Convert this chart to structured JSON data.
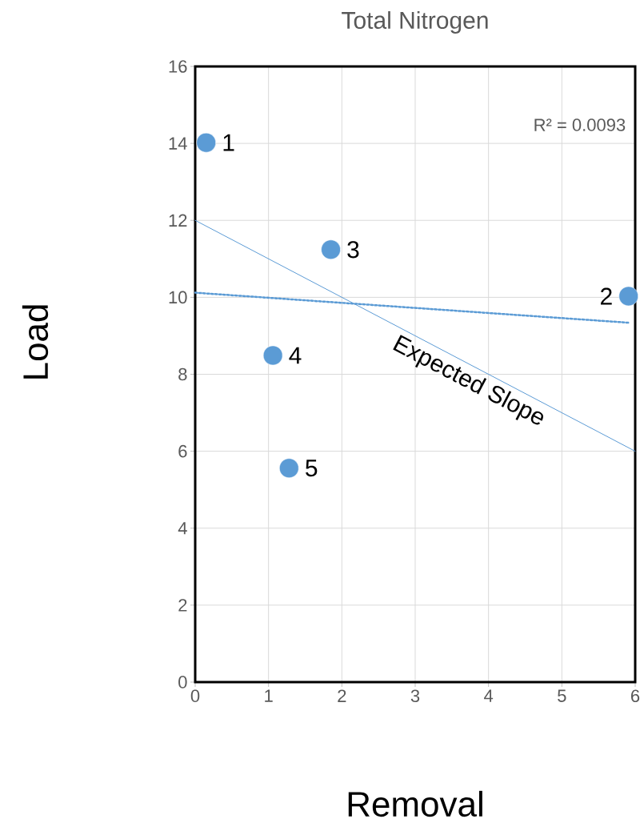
{
  "chart_data": {
    "type": "scatter",
    "title": "Total Nitrogen",
    "xlabel": "Removal",
    "ylabel": "Load",
    "series": [
      {
        "color": "#5b9bd5",
        "x": [
          0.15,
          5.91,
          1.85,
          1.06,
          1.28
        ],
        "values": [
          14.02,
          10.03,
          11.24,
          8.49,
          5.56
        ],
        "marker": "circle"
      },
      {
        "type": "line",
        "color": "#5b9bd5",
        "x": [
          0,
          5.91
        ],
        "values": [
          10.12,
          9.34
        ],
        "marker": "none",
        "line_style": "dotted"
      },
      {
        "type": "line",
        "color": "#5b9bd5",
        "x": [
          0,
          6
        ],
        "values": [
          12,
          6
        ],
        "marker": "none",
        "line_style": "solid"
      }
    ],
    "xlim": [
      0,
      6
    ],
    "ylim": [
      0,
      16
    ],
    "xticks": [
      0,
      1,
      2,
      3,
      4,
      5,
      6
    ],
    "yticks": [
      0,
      2,
      4,
      6,
      8,
      10,
      12,
      14,
      16
    ],
    "grid": true,
    "annotations": [
      {
        "text": "1",
        "x": 0.15,
        "y": 14.02
      },
      {
        "text": "2",
        "x": 5.91,
        "y": 10.03
      },
      {
        "text": "3",
        "x": 1.85,
        "y": 11.24
      },
      {
        "text": "4",
        "x": 1.06,
        "y": 8.49
      },
      {
        "text": "5",
        "x": 1.28,
        "y": 5.56
      },
      {
        "text": "Expected Slope",
        "x": 3.83,
        "y": 8.17
      },
      "R² = 0.0093"
    ]
  }
}
